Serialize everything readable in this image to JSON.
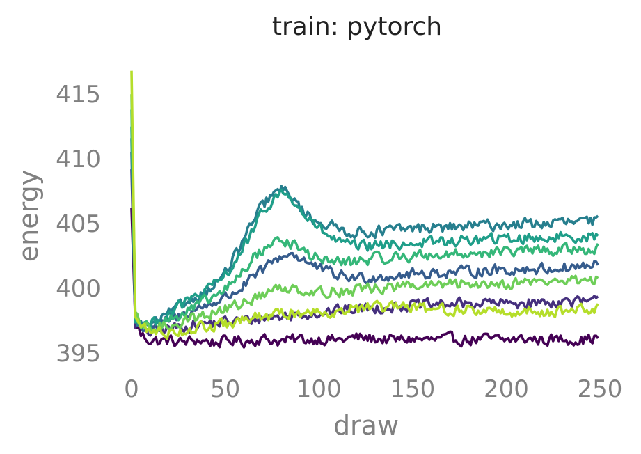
{
  "chart_data": {
    "type": "line",
    "title": "train: pytorch",
    "xlabel": "draw",
    "ylabel": "energy",
    "xlim": [
      0,
      250
    ],
    "ylim": [
      394.2,
      417
    ],
    "xticks": [
      0,
      50,
      100,
      150,
      200,
      250
    ],
    "yticks": [
      395,
      400,
      405,
      410,
      415
    ],
    "grid": false,
    "legend": "none",
    "x_sample": [
      0,
      2,
      5,
      10,
      15,
      20,
      25,
      30,
      35,
      40,
      45,
      50,
      55,
      60,
      65,
      70,
      75,
      80,
      85,
      90,
      95,
      100,
      110,
      120,
      130,
      140,
      150,
      160,
      170,
      180,
      190,
      200,
      210,
      220,
      230,
      240,
      249
    ],
    "series": [
      {
        "color": "#440154",
        "start": 406.2,
        "values": [
          406.2,
          397.5,
          396.4,
          396.0,
          395.9,
          396.0,
          395.8,
          395.9,
          396.0,
          395.9,
          395.8,
          395.9,
          396.0,
          395.9,
          396.0,
          396.1,
          396.0,
          395.9,
          396.0,
          396.1,
          396.0,
          396.1,
          396.0,
          396.2,
          396.1,
          396.0,
          396.1,
          396.0,
          396.1,
          396.0,
          396.1,
          396.0,
          396.1,
          396.0,
          396.1,
          396.0,
          396.2
        ]
      },
      {
        "color": "#46307e",
        "start": 409.2,
        "values": [
          409.2,
          397.3,
          396.8,
          396.6,
          396.8,
          396.9,
          397.0,
          397.1,
          397.2,
          397.3,
          397.3,
          397.4,
          397.5,
          397.5,
          397.6,
          397.7,
          397.8,
          397.8,
          397.9,
          398.0,
          398.1,
          398.1,
          398.3,
          398.4,
          398.5,
          398.6,
          398.7,
          398.7,
          398.8,
          398.8,
          398.9,
          398.8,
          398.9,
          398.9,
          399.0,
          398.9,
          399.0
        ]
      },
      {
        "color": "#365c8d",
        "start": 410.5,
        "values": [
          410.5,
          397.4,
          397.0,
          396.9,
          397.2,
          397.5,
          397.8,
          398.1,
          398.4,
          398.7,
          399.0,
          399.3,
          399.7,
          400.2,
          400.8,
          401.4,
          402.0,
          402.5,
          402.7,
          402.4,
          401.9,
          401.5,
          401.0,
          400.8,
          400.9,
          401.0,
          401.1,
          401.2,
          401.2,
          401.3,
          401.4,
          401.4,
          401.5,
          401.5,
          401.6,
          401.7,
          401.8
        ]
      },
      {
        "color": "#277f8e",
        "start": 411.6,
        "values": [
          411.6,
          397.5,
          397.2,
          397.1,
          397.5,
          398.0,
          398.5,
          399.0,
          399.4,
          399.8,
          400.4,
          401.2,
          402.4,
          403.8,
          405.2,
          406.4,
          407.2,
          407.6,
          407.2,
          406.2,
          405.5,
          405.2,
          404.6,
          404.3,
          404.4,
          404.5,
          404.6,
          404.7,
          404.7,
          404.8,
          404.9,
          404.9,
          405.0,
          405.0,
          405.1,
          405.1,
          405.2
        ]
      },
      {
        "color": "#1f9e89",
        "start": 412.5,
        "values": [
          412.5,
          397.6,
          397.3,
          397.2,
          397.6,
          398.1,
          398.6,
          399.0,
          399.4,
          399.8,
          400.3,
          401.0,
          402.0,
          403.2,
          404.5,
          405.8,
          406.8,
          407.4,
          407.0,
          406.0,
          405.2,
          404.6,
          403.6,
          403.2,
          403.3,
          403.4,
          403.5,
          403.6,
          403.6,
          403.7,
          403.8,
          403.8,
          403.9,
          403.9,
          404.0,
          404.0,
          404.1
        ]
      },
      {
        "color": "#35b779",
        "start": 413.8,
        "values": [
          413.8,
          397.7,
          397.2,
          397.0,
          397.3,
          397.6,
          397.9,
          398.2,
          398.6,
          399.0,
          399.4,
          399.9,
          400.6,
          401.4,
          402.3,
          403.0,
          403.5,
          403.7,
          403.5,
          403.0,
          402.6,
          402.3,
          402.0,
          402.1,
          402.3,
          402.4,
          402.5,
          402.6,
          402.6,
          402.7,
          402.8,
          402.8,
          402.9,
          402.9,
          403.0,
          403.0,
          403.1
        ]
      },
      {
        "color": "#6ece58",
        "start": 415.0,
        "values": [
          415.0,
          397.8,
          397.1,
          396.9,
          397.0,
          397.2,
          397.4,
          397.6,
          397.8,
          398.0,
          398.2,
          398.4,
          398.6,
          398.9,
          399.2,
          399.5,
          399.8,
          400.0,
          400.1,
          400.0,
          399.8,
          399.7,
          399.8,
          399.9,
          400.0,
          400.1,
          400.2,
          400.2,
          400.3,
          400.3,
          400.4,
          400.4,
          400.5,
          400.5,
          400.6,
          400.6,
          400.8
        ]
      },
      {
        "color": "#b5de2b",
        "start": 416.8,
        "values": [
          416.8,
          397.9,
          397.0,
          396.7,
          396.6,
          396.6,
          396.7,
          396.8,
          396.9,
          397.0,
          397.1,
          397.2,
          397.3,
          397.5,
          397.7,
          397.8,
          397.9,
          398.0,
          398.1,
          398.1,
          398.2,
          398.2,
          398.3,
          398.4,
          398.5,
          398.5,
          398.5,
          398.4,
          398.4,
          398.3,
          398.3,
          398.2,
          398.2,
          398.2,
          398.3,
          398.3,
          398.4
        ]
      }
    ]
  }
}
